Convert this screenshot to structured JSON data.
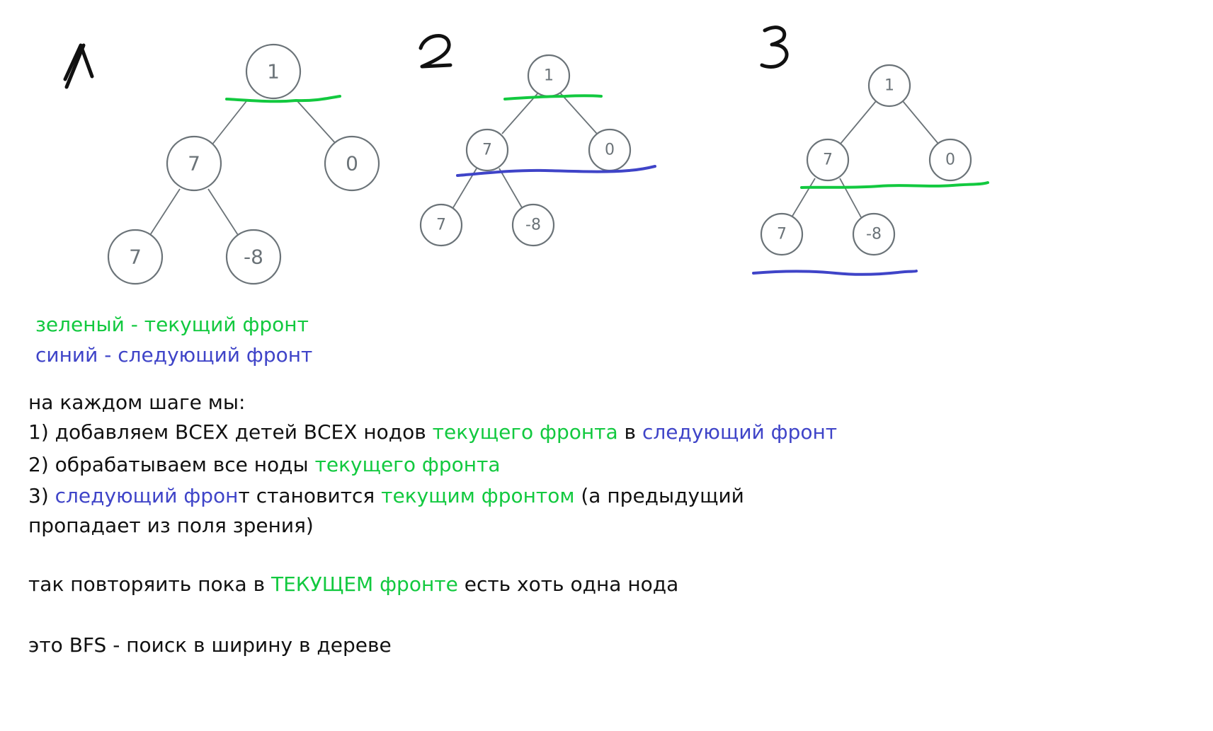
{
  "colors": {
    "current_front": "#12c93f",
    "next_front": "#3f44c8",
    "node_stroke": "#6b7378",
    "text": "#111111"
  },
  "steps": [
    {
      "label": "1",
      "nodes": [
        {
          "id": "root",
          "value": "1"
        },
        {
          "id": "left",
          "value": "7"
        },
        {
          "id": "right",
          "value": "0"
        },
        {
          "id": "left-left",
          "value": "7"
        },
        {
          "id": "left-right",
          "value": "-8"
        }
      ],
      "current_front_level": 0,
      "next_front_level": null
    },
    {
      "label": "2",
      "nodes": [
        {
          "id": "root",
          "value": "1"
        },
        {
          "id": "left",
          "value": "7"
        },
        {
          "id": "right",
          "value": "0"
        },
        {
          "id": "left-left",
          "value": "7"
        },
        {
          "id": "left-right",
          "value": "-8"
        }
      ],
      "current_front_level": 0,
      "next_front_level": 1
    },
    {
      "label": "3",
      "nodes": [
        {
          "id": "root",
          "value": "1"
        },
        {
          "id": "left",
          "value": "7"
        },
        {
          "id": "right",
          "value": "0"
        },
        {
          "id": "left-left",
          "value": "7"
        },
        {
          "id": "left-right",
          "value": "-8"
        }
      ],
      "current_front_level": 1,
      "next_front_level": 2
    }
  ],
  "legend": {
    "green_line": "зеленый - текущий фронт",
    "blue_line": "синий - следующий фронт"
  },
  "explanation": {
    "intro": "на каждом шаге мы:",
    "step1": {
      "prefix": "1) добавляем ВСЕХ детей ВСЕХ нодов ",
      "current": "текущего фронта",
      "middle": " в ",
      "next": "следующий фронт"
    },
    "step2": {
      "prefix": "2) обрабатываем все ноды ",
      "current": "текущего фронта"
    },
    "step3": {
      "prefix": "3) ",
      "next": "следующий фрон",
      "middle": "т становится ",
      "current": "текущим фронтом",
      "suffix": " (а предыдущий",
      "continuation": "пропадает из поля зрения)"
    },
    "repeat": {
      "prefix": "так повторяить пока в ",
      "current": "ТЕКУЩЕМ фронте",
      "suffix": " есть хоть одна нода"
    },
    "conclusion": "это BFS - поиск в ширину в дереве"
  }
}
